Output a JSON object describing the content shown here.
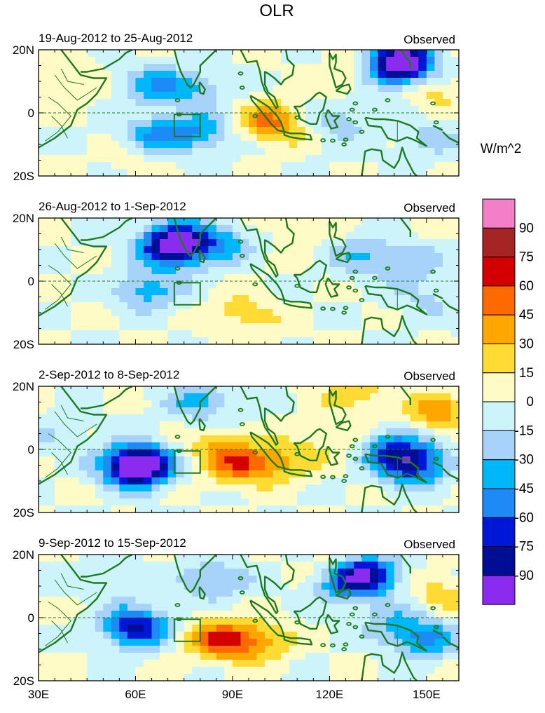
{
  "title": "OLR",
  "units": "W/m^2",
  "panels": [
    {
      "date_range": "19-Aug-2012 to 25-Aug-2012",
      "label": "Observed",
      "anomalies": [
        {
          "lon": 143,
          "lat": 17,
          "value": -80
        },
        {
          "lon": 140,
          "lat": 13,
          "value": -55
        },
        {
          "lon": 127,
          "lat": 12,
          "value": 20
        },
        {
          "lon": 152,
          "lat": 7,
          "value": 22
        },
        {
          "lon": 104,
          "lat": -4,
          "value": 30
        },
        {
          "lon": 100,
          "lat": -2,
          "value": 22
        },
        {
          "lon": 66,
          "lat": -7,
          "value": -45
        },
        {
          "lon": 80,
          "lat": -6,
          "value": -40
        },
        {
          "lon": 65,
          "lat": 9,
          "value": -38
        },
        {
          "lon": 79,
          "lat": 8,
          "value": -30
        },
        {
          "lon": 122,
          "lat": -3,
          "value": -25
        },
        {
          "lon": 150,
          "lat": -8,
          "value": -22
        },
        {
          "lon": 40,
          "lat": 10,
          "value": 18
        },
        {
          "lon": 60,
          "lat": -15,
          "value": 10
        }
      ]
    },
    {
      "date_range": "26-Aug-2012 to 1-Sep-2012",
      "label": "Observed",
      "anomalies": [
        {
          "lon": 71,
          "lat": 13,
          "value": -75
        },
        {
          "lon": 73,
          "lat": 9,
          "value": -48
        },
        {
          "lon": 86,
          "lat": 12,
          "value": -40
        },
        {
          "lon": 64,
          "lat": -3,
          "value": -40
        },
        {
          "lon": 92,
          "lat": -10,
          "value": 22
        },
        {
          "lon": 130,
          "lat": 8,
          "value": -30
        },
        {
          "lon": 145,
          "lat": 6,
          "value": -25
        },
        {
          "lon": 150,
          "lat": -5,
          "value": -20
        },
        {
          "lon": 110,
          "lat": 17,
          "value": 12
        },
        {
          "lon": 100,
          "lat": -15,
          "value": 8
        }
      ]
    },
    {
      "date_range": "2-Sep-2012 to 8-Sep-2012",
      "label": "Observed",
      "anomalies": [
        {
          "lon": 60,
          "lat": -6,
          "value": -85
        },
        {
          "lon": 62,
          "lat": -4,
          "value": -60
        },
        {
          "lon": 92,
          "lat": -5,
          "value": 45
        },
        {
          "lon": 104,
          "lat": -4,
          "value": 35
        },
        {
          "lon": 85,
          "lat": 0,
          "value": 25
        },
        {
          "lon": 146,
          "lat": -5,
          "value": -75
        },
        {
          "lon": 140,
          "lat": 0,
          "value": -50
        },
        {
          "lon": 154,
          "lat": 12,
          "value": 40
        },
        {
          "lon": 128,
          "lat": 18,
          "value": 25
        },
        {
          "lon": 80,
          "lat": 15,
          "value": -35
        },
        {
          "lon": 120,
          "lat": 2,
          "value": 15
        },
        {
          "lon": 36,
          "lat": 5,
          "value": -15
        }
      ]
    },
    {
      "date_range": "9-Sep-2012 to 15-Sep-2012",
      "label": "Observed",
      "anomalies": [
        {
          "lon": 60,
          "lat": -3,
          "value": -80
        },
        {
          "lon": 90,
          "lat": -8,
          "value": 40
        },
        {
          "lon": 84,
          "lat": -6,
          "value": 30
        },
        {
          "lon": 100,
          "lat": -7,
          "value": 25
        },
        {
          "lon": 131,
          "lat": 14,
          "value": -80
        },
        {
          "lon": 126,
          "lat": 10,
          "value": -40
        },
        {
          "lon": 150,
          "lat": -7,
          "value": -45
        },
        {
          "lon": 140,
          "lat": -2,
          "value": -30
        },
        {
          "lon": 84,
          "lat": 12,
          "value": -35
        },
        {
          "lon": 124,
          "lat": 18,
          "value": 18
        },
        {
          "lon": 154,
          "lat": 8,
          "value": 22
        },
        {
          "lon": 52,
          "lat": 12,
          "value": -15
        }
      ]
    }
  ],
  "lat_ticks": [
    "20N",
    "0",
    "20S"
  ],
  "lon_ticks": [
    "30E",
    "60E",
    "90E",
    "120E",
    "150E"
  ],
  "colorbar": {
    "labels": [
      "90",
      "75",
      "60",
      "45",
      "30",
      "15",
      "0",
      "-15",
      "-30",
      "-45",
      "-60",
      "-75",
      "-90"
    ],
    "colors": [
      "#f47ec8",
      "#a52424",
      "#d40000",
      "#ff6a00",
      "#ffa700",
      "#ffdb33",
      "#fffbc6",
      "#cdf4fb",
      "#a7d2f9",
      "#00b7f9",
      "#1e8af5",
      "#0018d6",
      "#000e96",
      "#8c2bf0"
    ]
  },
  "chart_data": {
    "type": "heatmap",
    "title": "OLR",
    "units": "W/m^2",
    "xlim": [
      30,
      160
    ],
    "ylim": [
      -20,
      20
    ],
    "xlabel": "",
    "ylabel": "",
    "levels": [
      -90,
      -75,
      -60,
      -45,
      -30,
      -15,
      0,
      15,
      30,
      45,
      60,
      75,
      90
    ]
  }
}
